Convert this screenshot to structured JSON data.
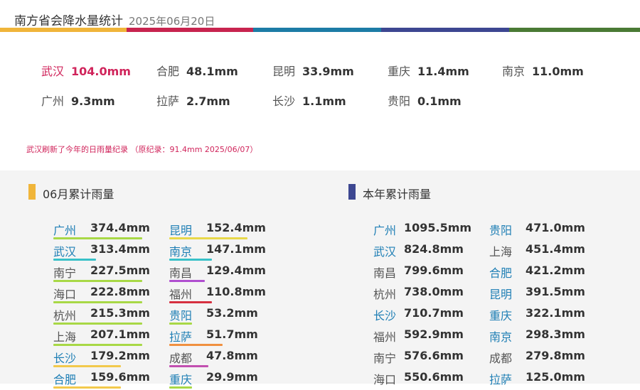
{
  "header": {
    "title": "南方省会降水量统计",
    "date": "2025年06月20日",
    "stripe_colors": [
      "#f0b53a",
      "#c8244f",
      "#1c7ca6",
      "#3d4791",
      "#4a7a35"
    ]
  },
  "daily": {
    "rows": [
      [
        {
          "city": "武汉",
          "value": "104.0mm",
          "highlight": true
        },
        {
          "city": "合肥",
          "value": "48.1mm"
        },
        {
          "city": "昆明",
          "value": "33.9mm"
        },
        {
          "city": "重庆",
          "value": "11.4mm"
        },
        {
          "city": "南京",
          "value": "11.0mm"
        }
      ],
      [
        {
          "city": "广州",
          "value": "9.3mm"
        },
        {
          "city": "拉萨",
          "value": "2.7mm"
        },
        {
          "city": "长沙",
          "value": "1.1mm"
        },
        {
          "city": "贵阳",
          "value": "0.1mm"
        }
      ]
    ],
    "note": "武汉刷新了今年的日雨量纪录 （原纪录：91.4mm 2025/06/07）"
  },
  "monthly": {
    "title": "06月累计雨量",
    "bar_color": "#f0b53a",
    "columns": [
      [
        {
          "city": "广州",
          "value": "374.4mm",
          "city_color": "blue",
          "underline": "#a8d846"
        },
        {
          "city": "武汉",
          "value": "313.4mm",
          "city_color": "blue",
          "underline": "#38c1c8"
        },
        {
          "city": "南宁",
          "value": "227.5mm",
          "city_color": "dark",
          "underline": "#a8d846"
        },
        {
          "city": "海口",
          "value": "222.8mm",
          "city_color": "dark",
          "underline": "#a8d846"
        },
        {
          "city": "杭州",
          "value": "215.3mm",
          "city_color": "dark",
          "underline": "#a8d846"
        },
        {
          "city": "上海",
          "value": "207.1mm",
          "city_color": "dark",
          "underline": "#a8d846"
        },
        {
          "city": "长沙",
          "value": "179.2mm",
          "city_color": "blue",
          "underline": "#f2c94c"
        },
        {
          "city": "合肥",
          "value": "159.6mm",
          "city_color": "blue",
          "underline": "#f2c94c"
        }
      ],
      [
        {
          "city": "昆明",
          "value": "152.4mm",
          "city_color": "blue",
          "underline": "#e8d84a"
        },
        {
          "city": "南京",
          "value": "147.1mm",
          "city_color": "blue",
          "underline": "#38c1c8"
        },
        {
          "city": "南昌",
          "value": "129.4mm",
          "city_color": "dark",
          "underline": "#b04fd0"
        },
        {
          "city": "福州",
          "value": "110.8mm",
          "city_color": "dark",
          "underline": "#d63040"
        },
        {
          "city": "贵阳",
          "value": "53.2mm",
          "city_color": "blue",
          "underline": "#a8d846"
        },
        {
          "city": "拉萨",
          "value": "51.7mm",
          "city_color": "blue",
          "underline": "#f09040"
        },
        {
          "city": "成都",
          "value": "47.8mm",
          "city_color": "dark",
          "underline": "#c24fb0"
        },
        {
          "city": "重庆",
          "value": "29.9mm",
          "city_color": "blue",
          "underline": "#a8d846"
        }
      ]
    ]
  },
  "yearly": {
    "title": "本年累计雨量",
    "bar_color": "#3d4791",
    "columns": [
      [
        {
          "city": "广州",
          "value": "1095.5mm",
          "city_color": "blue"
        },
        {
          "city": "武汉",
          "value": "824.8mm",
          "city_color": "blue"
        },
        {
          "city": "南昌",
          "value": "799.6mm",
          "city_color": "dark"
        },
        {
          "city": "杭州",
          "value": "738.0mm",
          "city_color": "dark"
        },
        {
          "city": "长沙",
          "value": "710.7mm",
          "city_color": "blue"
        },
        {
          "city": "福州",
          "value": "592.9mm",
          "city_color": "dark"
        },
        {
          "city": "南宁",
          "value": "576.6mm",
          "city_color": "dark"
        },
        {
          "city": "海口",
          "value": "550.6mm",
          "city_color": "dark"
        }
      ],
      [
        {
          "city": "贵阳",
          "value": "471.0mm",
          "city_color": "blue"
        },
        {
          "city": "上海",
          "value": "451.4mm",
          "city_color": "dark"
        },
        {
          "city": "合肥",
          "value": "421.2mm",
          "city_color": "blue"
        },
        {
          "city": "昆明",
          "value": "391.5mm",
          "city_color": "blue"
        },
        {
          "city": "重庆",
          "value": "322.1mm",
          "city_color": "blue"
        },
        {
          "city": "南京",
          "value": "298.3mm",
          "city_color": "blue"
        },
        {
          "city": "成都",
          "value": "279.8mm",
          "city_color": "dark"
        },
        {
          "city": "拉萨",
          "value": "125.0mm",
          "city_color": "blue"
        }
      ]
    ]
  }
}
